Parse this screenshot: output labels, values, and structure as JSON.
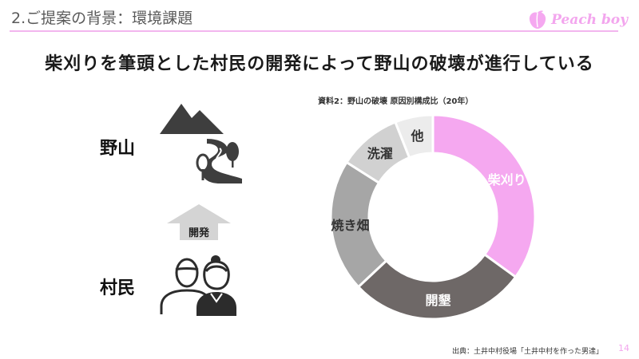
{
  "header": {
    "title": "2.ご提案の背景：環境課題",
    "brand": "Peach boy"
  },
  "heading": "柴刈りを筆頭とした村民の開発によって野山の破壊が進行している",
  "diagram": {
    "top_label": "野山",
    "bottom_label": "村民",
    "arrow_label": "開発",
    "icons": [
      "mountain-icon",
      "forest-road-icon",
      "elderly-couple-icon",
      "up-arrow-icon"
    ]
  },
  "chart_data": {
    "type": "pie",
    "donut": true,
    "title": "資料2：野山の破壊 原因別構成比（20年）",
    "categories": [
      "柴刈り",
      "開墾",
      "焼き畑",
      "洗濯",
      "他"
    ],
    "values": [
      35,
      28,
      21,
      10,
      6
    ],
    "colors": [
      "#f5a8f0",
      "#6e6867",
      "#a6a6a6",
      "#d1d1d1",
      "#ececec"
    ],
    "label_colors": [
      "#ffffff",
      "#ffffff",
      "#333333",
      "#333333",
      "#333333"
    ]
  },
  "footer": {
    "source": "出典：土井中村役場「土井中村を作った男達」",
    "page": "14"
  }
}
